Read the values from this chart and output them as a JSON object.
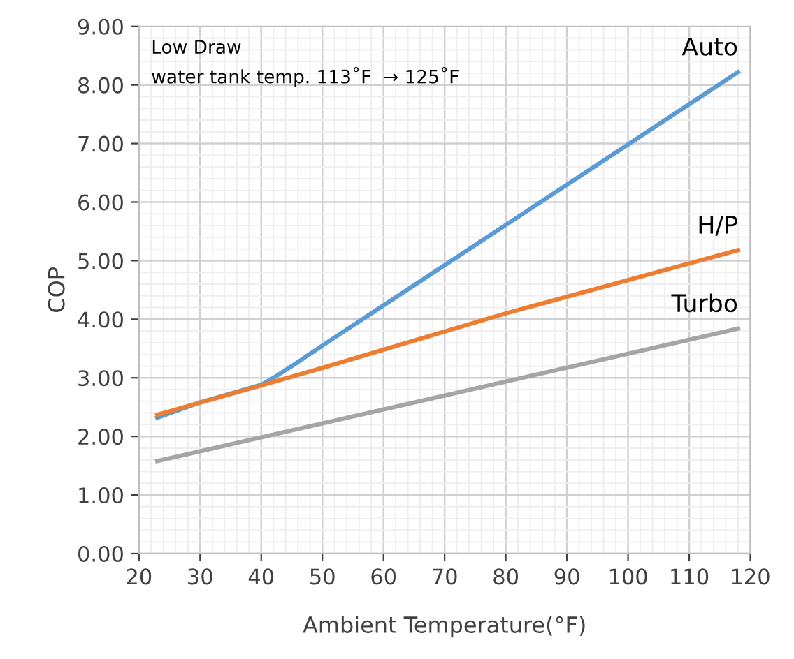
{
  "chart_data": {
    "type": "line",
    "xlabel": "Ambient Temperature(°F)",
    "ylabel": "COP",
    "annotations": [
      "Low Draw\nwater tank temp. 113˚F  → 125˚F"
    ],
    "series": [
      {
        "name": "Auto",
        "color": "#5b9bd5",
        "x": [
          23,
          30,
          40,
          42,
          45,
          50,
          118
        ],
        "values": [
          2.32,
          2.58,
          2.88,
          3.0,
          3.2,
          3.55,
          8.22
        ]
      },
      {
        "name": "H/P",
        "color": "#ed7d31",
        "x": [
          23,
          40,
          50,
          80,
          118
        ],
        "values": [
          2.37,
          2.87,
          3.17,
          4.1,
          5.18
        ]
      },
      {
        "name": "Turbo",
        "color": "#a5a5a5",
        "x": [
          23,
          118
        ],
        "values": [
          1.58,
          3.84
        ]
      }
    ],
    "xlim": [
      20,
      120
    ],
    "xticks": [
      20,
      30,
      40,
      50,
      60,
      70,
      80,
      90,
      100,
      110,
      120
    ],
    "ylim": [
      0,
      9
    ],
    "yticks": [
      {
        "value": 0,
        "label": "0.00"
      },
      {
        "value": 1,
        "label": "1.00"
      },
      {
        "value": 2,
        "label": "2.00"
      },
      {
        "value": 3,
        "label": "3.00"
      },
      {
        "value": 4,
        "label": "4.00"
      },
      {
        "value": 5,
        "label": "5.00"
      },
      {
        "value": 6,
        "label": "6.00"
      },
      {
        "value": 7,
        "label": "7.00"
      },
      {
        "value": 8,
        "label": "8.00"
      },
      {
        "value": 9,
        "label": "9.00"
      }
    ],
    "grid": true,
    "legend": false,
    "line_style": "solid",
    "marker": "none"
  }
}
